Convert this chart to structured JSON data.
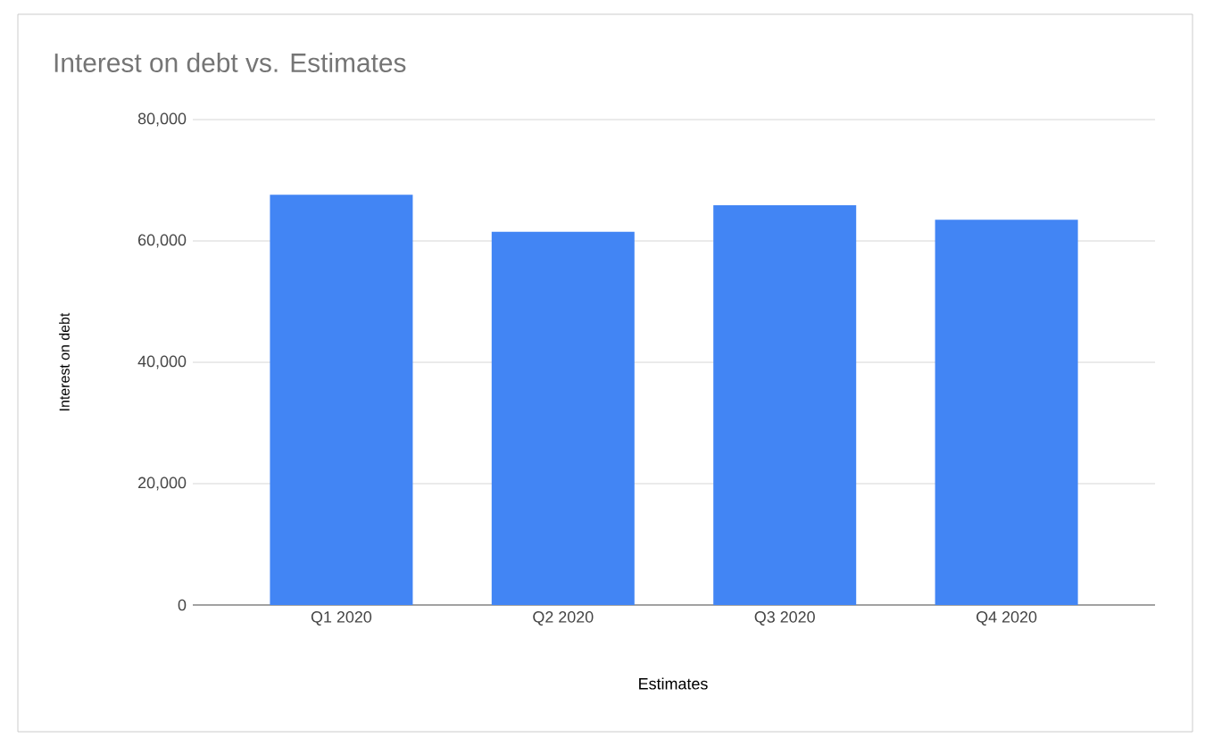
{
  "chart_data": {
    "type": "bar",
    "title": "Interest on debt vs. Estimates",
    "xlabel": "Estimates",
    "ylabel": "Interest on debt",
    "categories": [
      "Q1 2020",
      "Q2 2020",
      "Q3 2020",
      "Q4 2020"
    ],
    "values": [
      67600,
      61500,
      65900,
      63500
    ],
    "color": "#4285f4",
    "ylim": [
      0,
      80000
    ],
    "yticks": [
      {
        "value": 0,
        "label": "0"
      },
      {
        "value": 20000,
        "label": "20,000"
      },
      {
        "value": 40000,
        "label": "40,000"
      },
      {
        "value": 60000,
        "label": "60,000"
      },
      {
        "value": 80000,
        "label": "80,000"
      }
    ],
    "grid": "y"
  }
}
